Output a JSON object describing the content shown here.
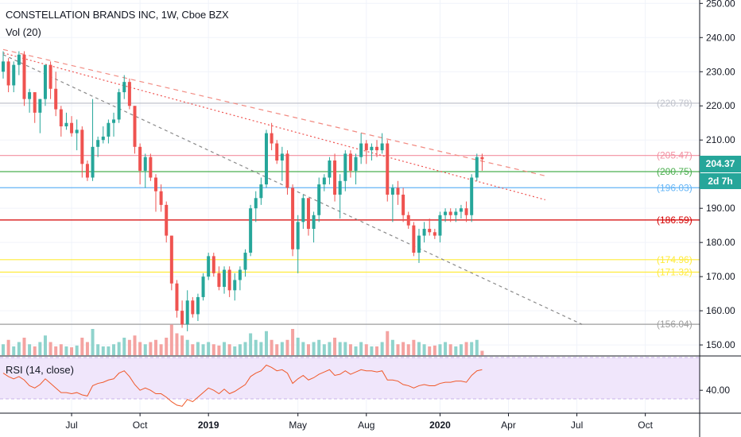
{
  "header": {
    "title": "CONSTELLATION BRANDS INC, 1W, Cboe BZX",
    "volume_label": "Vol (20)",
    "rsi_label": "RSI (14, close)"
  },
  "last_price": "204.37",
  "time_to_close": "2d 7h",
  "colors": {
    "up": "#26a69a",
    "down": "#ef5350",
    "volume_up": "#8fd3cc",
    "volume_down": "#f4a3a1",
    "rsi_line": "#f0592a",
    "rsi_band": "#f0e6fb",
    "axis_text": "#131722"
  },
  "chart_data": {
    "type": "candlestick",
    "title": "CONSTELLATION BRANDS INC, 1W, Cboe BZX",
    "y_axis": {
      "ticks": [
        "250.00",
        "240.00",
        "230.00",
        "220.00",
        "210.00",
        "190.00",
        "180.00",
        "170.00",
        "160.00",
        "150.00"
      ],
      "range": [
        147,
        251
      ]
    },
    "x_axis": {
      "ticks": [
        "Jul",
        "Oct",
        "2019",
        "May",
        "Aug",
        "2020",
        "Apr",
        "Jul",
        "Oct"
      ]
    },
    "levels": [
      {
        "value": 220.78,
        "label": "(220.78)",
        "color": "#c0c3cc"
      },
      {
        "value": 205.47,
        "label": "(205.47)",
        "color": "#f28fa0"
      },
      {
        "value": 200.75,
        "label": "(200.75)",
        "color": "#4caf50"
      },
      {
        "value": 196.03,
        "label": "(196.03)",
        "color": "#64b5f6"
      },
      {
        "value": 186.59,
        "label": "(186.59)",
        "color": "#d50000"
      },
      {
        "value": 174.96,
        "label": "(174.96)",
        "color": "#ffeb3b"
      },
      {
        "value": 171.32,
        "label": "(171.32)",
        "color": "#ffeb3b"
      },
      {
        "value": 156.04,
        "label": "(156.04)",
        "color": "#9e9e9e"
      }
    ],
    "trendlines": [
      {
        "style": "dashed-red",
        "from": {
          "week": 0,
          "price": 236.5
        },
        "to": {
          "week": 103,
          "price": 199.5
        }
      },
      {
        "style": "dotted-red",
        "from": {
          "week": 0,
          "price": 235.5
        },
        "to": {
          "week": 103,
          "price": 192.5
        }
      },
      {
        "style": "dashed-gray",
        "from": {
          "week": 0,
          "price": 235.0
        },
        "to": {
          "week": 110,
          "price": 156.0
        }
      }
    ],
    "candles_ohlc": [
      [
        230,
        236,
        228,
        233
      ],
      [
        233,
        234,
        224,
        226
      ],
      [
        226,
        233,
        224,
        232
      ],
      [
        232,
        236,
        229,
        235
      ],
      [
        235,
        236,
        220,
        222
      ],
      [
        222,
        225,
        218,
        224
      ],
      [
        224,
        224,
        215,
        218
      ],
      [
        218,
        222,
        212,
        222
      ],
      [
        222,
        232,
        220,
        232
      ],
      [
        232,
        233,
        222,
        225
      ],
      [
        225,
        230,
        217,
        219
      ],
      [
        219,
        220,
        211,
        214
      ],
      [
        214,
        218,
        213,
        215
      ],
      [
        215,
        217,
        211,
        212
      ],
      [
        212,
        216,
        207,
        213
      ],
      [
        213,
        214,
        199,
        203
      ],
      [
        203,
        204,
        198,
        199
      ],
      [
        199,
        222,
        198,
        208
      ],
      [
        208,
        211,
        205,
        210
      ],
      [
        210,
        214,
        209,
        211
      ],
      [
        211,
        216,
        209,
        215
      ],
      [
        215,
        218,
        211,
        216
      ],
      [
        216,
        225,
        215,
        224
      ],
      [
        224,
        229,
        222,
        227
      ],
      [
        227,
        228,
        219,
        220
      ],
      [
        220,
        220,
        206,
        208
      ],
      [
        208,
        209,
        197,
        201
      ],
      [
        201,
        206,
        196,
        205
      ],
      [
        205,
        206,
        198,
        199
      ],
      [
        199,
        200,
        189,
        195
      ],
      [
        195,
        197,
        189,
        191
      ],
      [
        191,
        192,
        180,
        182
      ],
      [
        182,
        182,
        166,
        168
      ],
      [
        168,
        169,
        158,
        160
      ],
      [
        160,
        163,
        155,
        156
      ],
      [
        156,
        166,
        154,
        163
      ],
      [
        163,
        164,
        158,
        159
      ],
      [
        159,
        165,
        157,
        164
      ],
      [
        164,
        171,
        163,
        170
      ],
      [
        170,
        177,
        169,
        176
      ],
      [
        176,
        177,
        170,
        171
      ],
      [
        171,
        173,
        166,
        167
      ],
      [
        167,
        173,
        165,
        172
      ],
      [
        172,
        173,
        164,
        166
      ],
      [
        166,
        171,
        163,
        169
      ],
      [
        169,
        173,
        166,
        172
      ],
      [
        172,
        178,
        170,
        177
      ],
      [
        177,
        191,
        176,
        190
      ],
      [
        190,
        195,
        186,
        193
      ],
      [
        193,
        199,
        191,
        197
      ],
      [
        197,
        213,
        196,
        212
      ],
      [
        212,
        215,
        207,
        209
      ],
      [
        209,
        210,
        203,
        204
      ],
      [
        204,
        208,
        198,
        206
      ],
      [
        206,
        207,
        194,
        196
      ],
      [
        196,
        197,
        176,
        178
      ],
      [
        178,
        188,
        171,
        186
      ],
      [
        186,
        194,
        184,
        193
      ],
      [
        193,
        193,
        182,
        184
      ],
      [
        184,
        189,
        180,
        188
      ],
      [
        188,
        199,
        186,
        197
      ],
      [
        197,
        200,
        195,
        199
      ],
      [
        199,
        205,
        197,
        204
      ],
      [
        204,
        206,
        192,
        194
      ],
      [
        194,
        200,
        187,
        198
      ],
      [
        198,
        207,
        195,
        206
      ],
      [
        206,
        207,
        199,
        201
      ],
      [
        201,
        206,
        197,
        205
      ],
      [
        205,
        212,
        203,
        209
      ],
      [
        209,
        210,
        203,
        207
      ],
      [
        207,
        209,
        204,
        208
      ],
      [
        208,
        210,
        205,
        207
      ],
      [
        207,
        212,
        206,
        209
      ],
      [
        209,
        210,
        192,
        194
      ],
      [
        194,
        197,
        186,
        196
      ],
      [
        196,
        198,
        191,
        194
      ],
      [
        194,
        196,
        186,
        188
      ],
      [
        188,
        189,
        184,
        185
      ],
      [
        185,
        186,
        176,
        177
      ],
      [
        177,
        184,
        174,
        182
      ],
      [
        182,
        186,
        180,
        184
      ],
      [
        184,
        187,
        182,
        183
      ],
      [
        183,
        184,
        181,
        182
      ],
      [
        182,
        189,
        180,
        188
      ],
      [
        188,
        190,
        186,
        189
      ],
      [
        189,
        190,
        186,
        188
      ],
      [
        188,
        190,
        186,
        189
      ],
      [
        189,
        191,
        187,
        190
      ],
      [
        190,
        192,
        186,
        188
      ],
      [
        188,
        200,
        186,
        199
      ],
      [
        199,
        206,
        198,
        205
      ],
      [
        205,
        206,
        201,
        204.37
      ]
    ],
    "volume_relative": [
      0.25,
      0.35,
      0.2,
      0.3,
      0.4,
      0.25,
      0.2,
      0.3,
      0.45,
      0.3,
      0.2,
      0.25,
      0.2,
      0.18,
      0.22,
      0.4,
      0.3,
      0.6,
      0.25,
      0.2,
      0.2,
      0.25,
      0.3,
      0.4,
      0.35,
      0.45,
      0.3,
      0.25,
      0.3,
      0.35,
      0.25,
      0.4,
      0.7,
      0.5,
      0.45,
      0.35,
      0.25,
      0.3,
      0.25,
      0.3,
      0.25,
      0.22,
      0.3,
      0.25,
      0.2,
      0.25,
      0.3,
      0.5,
      0.35,
      0.3,
      0.55,
      0.35,
      0.25,
      0.3,
      0.35,
      0.6,
      0.4,
      0.3,
      0.25,
      0.3,
      0.35,
      0.25,
      0.3,
      0.4,
      0.3,
      0.3,
      0.25,
      0.2,
      0.3,
      0.25,
      0.2,
      0.2,
      0.3,
      0.55,
      0.35,
      0.25,
      0.3,
      0.25,
      0.35,
      0.3,
      0.25,
      0.2,
      0.22,
      0.25,
      0.3,
      0.25,
      0.2,
      0.25,
      0.3,
      0.3,
      0.35,
      0.1
    ],
    "rsi": {
      "name": "RSI (14, close)",
      "axis_tick": "40.00",
      "values": [
        55,
        52,
        50,
        52,
        49,
        44,
        42,
        45,
        50,
        46,
        42,
        38,
        38,
        37,
        38,
        36,
        35,
        44,
        46,
        47,
        49,
        50,
        55,
        57,
        52,
        45,
        40,
        42,
        40,
        37,
        37,
        34,
        30,
        27,
        26,
        32,
        30,
        34,
        38,
        42,
        40,
        37,
        41,
        37,
        39,
        42,
        45,
        52,
        55,
        57,
        62,
        60,
        57,
        58,
        55,
        46,
        50,
        53,
        49,
        51,
        54,
        56,
        58,
        53,
        54,
        57,
        54,
        56,
        58,
        57,
        57,
        56,
        57,
        49,
        49,
        48,
        45,
        44,
        42,
        44,
        45,
        44,
        44,
        46,
        47,
        47,
        48,
        48,
        47,
        53,
        57,
        58
      ]
    }
  }
}
